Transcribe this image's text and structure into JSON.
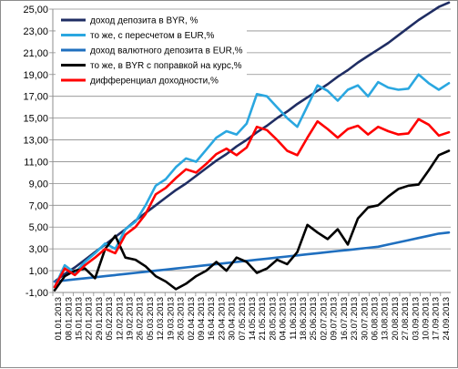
{
  "chart_data": {
    "type": "line",
    "title": "",
    "xlabel": "",
    "ylabel": "",
    "ylim": [
      -1,
      25
    ],
    "yticks": [
      "-1,00",
      "1,00",
      "3,00",
      "5,00",
      "7,00",
      "9,00",
      "11,00",
      "13,00",
      "15,00",
      "17,00",
      "19,00",
      "21,00",
      "23,00",
      "25,00"
    ],
    "xticks": [
      "01.01.2013",
      "08.01.2013",
      "15.01.2013",
      "22.01.2013",
      "29.01.2013",
      "05.02.2013",
      "12.02.2013",
      "19.02.2013",
      "26.02.2013",
      "05.03.2013",
      "12.03.2013",
      "19.03.2013",
      "26.03.2013",
      "02.04.2013",
      "09.04.2013",
      "16.04.2013",
      "23.04.2013",
      "30.04.2013",
      "07.05.2013",
      "14.05.2013",
      "21.05.2013",
      "28.05.2013",
      "04.06.2013",
      "11.06.2013",
      "18.06.2013",
      "25.06.2013",
      "02.07.2013",
      "09.07.2013",
      "16.07.2013",
      "23.07.2013",
      "30.07.2013",
      "06.08.2013",
      "13.08.2013",
      "20.08.2013",
      "27.08.2013",
      "03.09.2013",
      "10.09.2013",
      "17.09.2013",
      "24.09.2013"
    ],
    "grid": true,
    "legend_position": "top-left",
    "series": [
      {
        "name": "доход депозита в BYR, %",
        "color": "#1f2d63",
        "values": [
          0.0,
          0.7,
          1.3,
          2.0,
          2.7,
          3.4,
          4.1,
          4.8,
          5.6,
          6.3,
          7.0,
          7.7,
          8.4,
          9.0,
          9.7,
          10.4,
          11.1,
          11.7,
          12.4,
          13.0,
          13.7,
          14.3,
          15.0,
          15.6,
          16.3,
          16.9,
          17.5,
          18.1,
          18.8,
          19.4,
          20.1,
          20.7,
          21.3,
          21.9,
          22.6,
          23.3,
          24.0,
          24.6,
          25.2,
          25.6
        ]
      },
      {
        "name": "то же, с пересчетом в EUR,%",
        "color": "#2aa7e0",
        "values": [
          -0.5,
          1.5,
          0.8,
          1.8,
          2.6,
          3.5,
          3.0,
          4.8,
          5.5,
          7.0,
          8.8,
          9.4,
          10.5,
          11.3,
          11.0,
          12.1,
          13.2,
          13.8,
          13.5,
          14.5,
          17.2,
          17.0,
          16.0,
          15.0,
          14.2,
          16.1,
          18.0,
          17.5,
          16.6,
          17.6,
          18.0,
          17.0,
          18.3,
          17.8,
          17.6,
          17.7,
          19.0,
          18.2,
          17.6,
          18.2
        ]
      },
      {
        "name": "доход валютного депозита в EUR,%",
        "color": "#1f6fbf",
        "values": [
          0.0,
          0.1,
          0.2,
          0.3,
          0.4,
          0.5,
          0.6,
          0.7,
          0.8,
          0.9,
          1.0,
          1.1,
          1.2,
          1.3,
          1.4,
          1.5,
          1.6,
          1.7,
          1.8,
          1.9,
          2.0,
          2.1,
          2.2,
          2.3,
          2.4,
          2.5,
          2.6,
          2.7,
          2.8,
          2.9,
          3.0,
          3.1,
          3.2,
          3.4,
          3.6,
          3.8,
          4.0,
          4.2,
          4.4,
          4.5
        ]
      },
      {
        "name": "то же, в BYR с поправкой на курс,%",
        "color": "#000000",
        "values": [
          -0.8,
          0.5,
          1.0,
          1.2,
          0.3,
          3.0,
          4.2,
          2.2,
          2.0,
          1.4,
          0.5,
          0.0,
          -0.7,
          -0.2,
          0.5,
          1.0,
          1.8,
          1.0,
          2.2,
          1.8,
          0.8,
          1.2,
          2.0,
          1.6,
          2.7,
          5.2,
          4.5,
          3.9,
          4.8,
          3.4,
          5.8,
          6.8,
          7.0,
          7.8,
          8.5,
          8.8,
          8.9,
          10.2,
          11.6,
          12.0
        ]
      },
      {
        "name": "дифференциал доходности,%",
        "color": "#ff0000",
        "values": [
          -0.5,
          1.2,
          0.6,
          1.5,
          2.2,
          3.0,
          2.6,
          4.3,
          5.0,
          6.2,
          8.0,
          8.6,
          9.5,
          10.3,
          10.0,
          10.8,
          11.7,
          12.2,
          11.6,
          12.3,
          14.2,
          13.9,
          13.0,
          12.0,
          11.6,
          13.2,
          14.7,
          14.0,
          13.2,
          14.0,
          14.3,
          13.5,
          14.2,
          13.8,
          13.5,
          13.6,
          14.9,
          14.4,
          13.4,
          13.7
        ]
      }
    ]
  }
}
